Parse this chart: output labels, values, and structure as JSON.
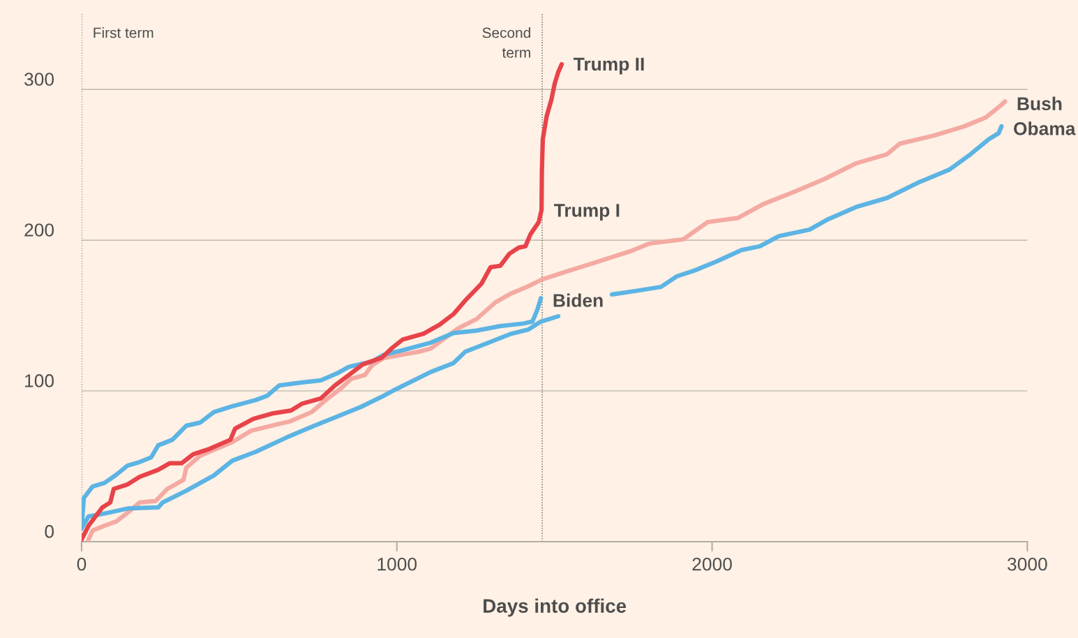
{
  "chart_data": {
    "type": "line",
    "xlabel": "Days into office",
    "xlim": [
      0,
      3000
    ],
    "xticks": [
      0,
      1000,
      2000,
      3000
    ],
    "ylim": [
      0,
      350
    ],
    "yticks": [
      0,
      100,
      200,
      300
    ],
    "grid": "y",
    "legend": false,
    "marker": "none",
    "line_style": "solid",
    "ref_lines": [
      {
        "axis": "x",
        "value": 0,
        "label": "First term",
        "color": "#555555",
        "line_style": "dotted"
      },
      {
        "axis": "x",
        "value": 1461,
        "label": "Second\nterm",
        "color": "#555555",
        "line_style": "dotted"
      }
    ],
    "annotations": [
      {
        "text": "Trump I",
        "x": 1461,
        "y": 220
      },
      {
        "text": "Trump II",
        "x": 1523,
        "y": 317
      }
    ],
    "series": [
      {
        "name": "Bush",
        "color": "#f4aaa2",
        "x": [
          22,
          35,
          73,
          110,
          139,
          184,
          235,
          272,
          323,
          332,
          376,
          478,
          538,
          604,
          664,
          730,
          775,
          819,
          855,
          899,
          921,
          959,
          1069,
          1107,
          1195,
          1253,
          1313,
          1364,
          1417,
          1461,
          1550,
          1623,
          1740,
          1800,
          1908,
          1986,
          2083,
          2163,
          2260,
          2358,
          2457,
          2555,
          2595,
          2703,
          2800,
          2869,
          2918,
          2929
        ],
        "values": [
          1.4,
          7.4,
          10.6,
          13.4,
          18,
          26,
          27,
          35,
          41,
          49,
          57,
          66,
          73.6,
          77,
          80,
          86,
          94,
          101,
          108,
          110.6,
          117,
          121.8,
          126,
          128,
          141.6,
          147.7,
          158.8,
          164.8,
          169.4,
          174,
          180,
          184.7,
          192.6,
          197.7,
          200.5,
          212,
          214.8,
          224,
          232,
          240.7,
          251,
          257,
          264,
          269.4,
          275.5,
          281.5,
          289.8,
          292
        ]
      },
      {
        "name": "Obama",
        "color": "#5cb4e4",
        "x": [
          0,
          22,
          80,
          146,
          243,
          257,
          332,
          420,
          478,
          553,
          649,
          737,
          810,
          885,
          951,
          996,
          1107,
          1180,
          1217,
          1291,
          1364,
          1417,
          1457,
          1512,
          1578,
          1682,
          1769,
          1838,
          1888,
          1946,
          2015,
          2094,
          2152,
          2212,
          2309,
          2369,
          2457,
          2555,
          2652,
          2752,
          2820,
          2878,
          2909,
          2918
        ],
        "values": [
          8.8,
          16.7,
          19,
          22,
          22.7,
          26,
          33.8,
          44,
          53.7,
          59.7,
          69,
          76.8,
          82.9,
          89.3,
          96,
          101,
          112.5,
          118.5,
          126,
          132,
          138,
          140.7,
          146,
          149.5,
          null,
          164,
          166.7,
          169,
          176,
          180,
          186,
          193.5,
          196,
          202.7,
          207,
          214,
          222,
          228,
          238,
          246.7,
          257,
          267,
          271,
          275.5
        ]
      },
      {
        "name": "Biden",
        "color": "#5cb4e4",
        "x": [
          0,
          7,
          35,
          73,
          110,
          146,
          184,
          221,
          243,
          288,
          332,
          376,
          420,
          478,
          553,
          589,
          627,
          700,
          759,
          810,
          848,
          921,
          959,
          1018,
          1107,
          1180,
          1253,
          1328,
          1401,
          1430,
          1446,
          1457
        ],
        "values": [
          8.8,
          29,
          36.6,
          39,
          44.4,
          50.5,
          52.8,
          56,
          63.9,
          67.6,
          76.9,
          79,
          86,
          89.8,
          94,
          96.8,
          103.7,
          105.6,
          107,
          111.6,
          116,
          119.4,
          124,
          127,
          132,
          138.4,
          140,
          143,
          144.7,
          146,
          154,
          161.5
        ]
      },
      {
        "color": "#e8434a",
        "x": [
          0,
          22,
          66,
          91,
          102,
          146,
          184,
          243,
          279,
          317,
          354,
          405,
          472,
          487,
          545,
          604,
          664,
          700,
          759,
          804,
          848,
          892,
          952,
          988,
          1018,
          1085,
          1136,
          1180,
          1217,
          1268,
          1297,
          1328,
          1357,
          1386,
          1408,
          1424,
          1450,
          1459,
          1460,
          1463,
          1475,
          1490,
          1501,
          1512,
          1523
        ],
        "values": [
          1.4,
          10.6,
          22.7,
          26,
          35,
          38,
          43,
          47.7,
          52,
          52,
          58,
          61.5,
          67.6,
          75,
          81.5,
          85,
          87,
          91.6,
          95,
          103.7,
          110.6,
          117.6,
          122,
          129,
          134,
          138,
          144,
          151,
          160,
          171,
          182,
          183,
          191,
          195,
          196,
          204,
          212,
          220,
          245,
          267,
          282,
          293,
          304,
          311.5,
          316.7
        ]
      }
    ]
  }
}
